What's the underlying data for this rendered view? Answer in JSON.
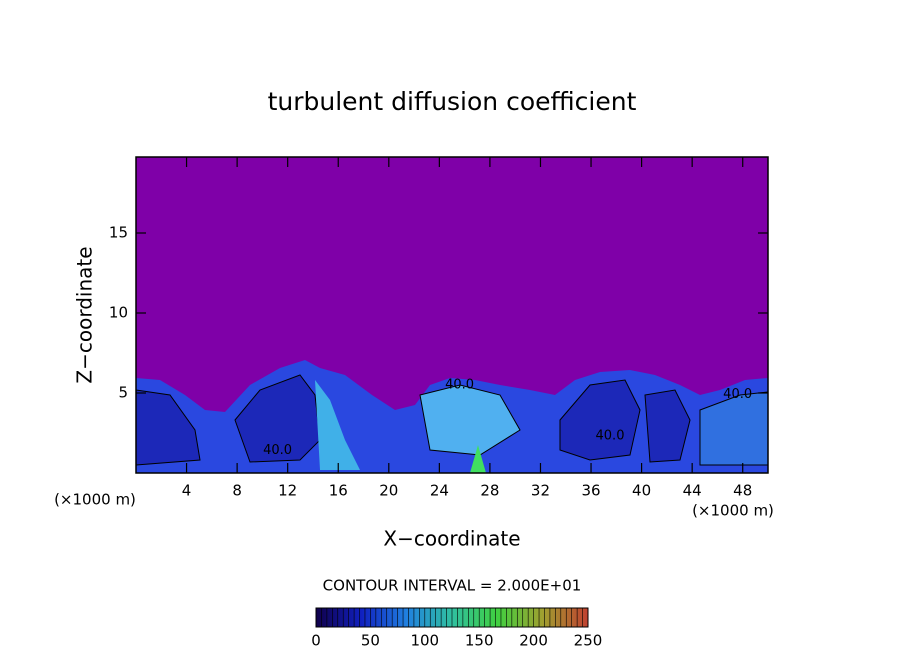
{
  "chart_data": {
    "type": "contour",
    "title": "turbulent diffusion coefficient",
    "x_label": "X−coordinate",
    "y_label": "Z−coordinate",
    "x_unit": "(×1000 m)",
    "y_unit": "(×1000 m)",
    "xlim": [
      0,
      50
    ],
    "ylim": [
      0,
      19.75
    ],
    "xticks": [
      4,
      8,
      12,
      16,
      20,
      24,
      28,
      32,
      36,
      40,
      44,
      48
    ],
    "yticks": [
      5,
      10,
      15
    ],
    "contour_interval_text": "CONTOUR INTERVAL = 2.000E+01",
    "contour_labels": [
      {
        "value": 40,
        "label": "40.0",
        "x": 11.2,
        "z": 1.4
      },
      {
        "value": 40,
        "label": "40.0",
        "x": 25.6,
        "z": 5.5
      },
      {
        "value": 40,
        "label": "40.0",
        "x": 37.5,
        "z": 2.3
      },
      {
        "value": 40,
        "label": "40.0",
        "x": 47.6,
        "z": 4.9
      }
    ],
    "colorbar": {
      "lim": [
        0,
        250
      ],
      "ticks": [
        0,
        50,
        100,
        150,
        200,
        250
      ],
      "colors": [
        "#10004a",
        "#1020c0",
        "#2080e0",
        "#30c0a0",
        "#40d040",
        "#a0a030",
        "#c04030"
      ]
    },
    "background_color": "#7f00a8"
  }
}
